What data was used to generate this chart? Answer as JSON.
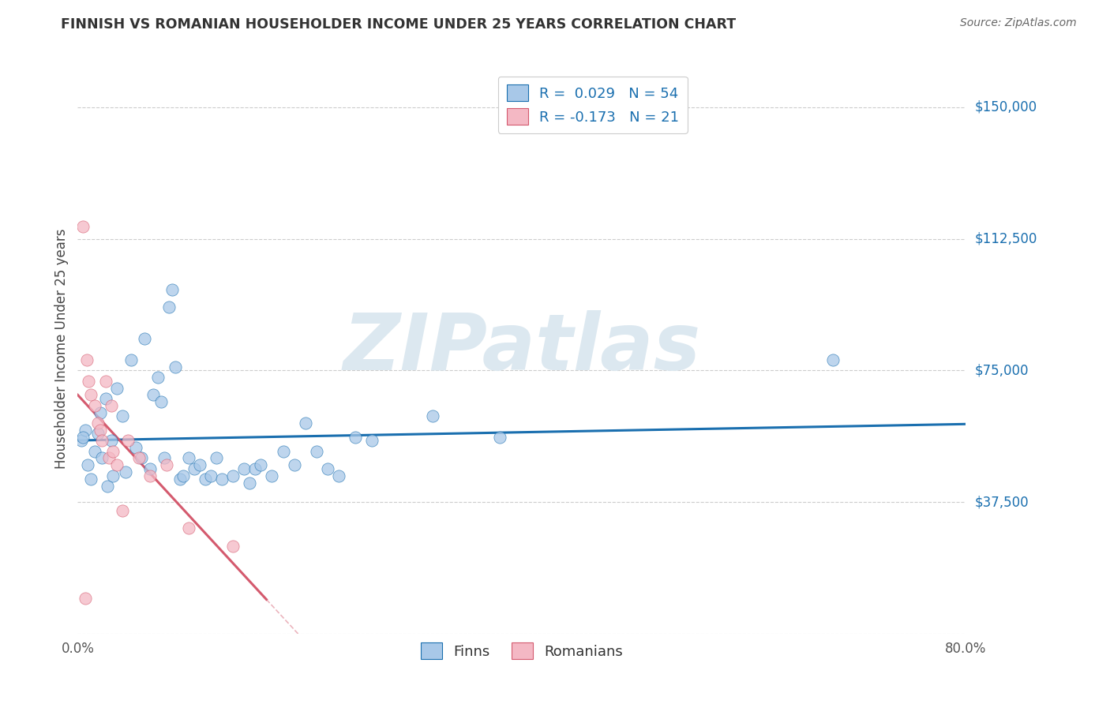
{
  "title": "FINNISH VS ROMANIAN HOUSEHOLDER INCOME UNDER 25 YEARS CORRELATION CHART",
  "source": "Source: ZipAtlas.com",
  "ylabel": "Householder Income Under 25 years",
  "xlim": [
    0.0,
    0.8
  ],
  "ylim": [
    0,
    162500
  ],
  "yticks": [
    0,
    37500,
    75000,
    112500,
    150000
  ],
  "ytick_labels": [
    "",
    "$37,500",
    "$75,000",
    "$112,500",
    "$150,000"
  ],
  "finns_R": 0.029,
  "finns_N": 54,
  "romanians_R": -0.173,
  "romanians_N": 21,
  "blue_fill": "#a8c8e8",
  "pink_fill": "#f4b8c4",
  "blue_line_color": "#1a6faf",
  "pink_line_color": "#d45a6e",
  "watermark": "ZIPatlas",
  "watermark_color": "#dce8f0",
  "legend_text_color": "#1a6faf",
  "title_color": "#333333",
  "grid_color": "#cccccc",
  "finns_x": [
    0.003,
    0.007,
    0.009,
    0.012,
    0.015,
    0.018,
    0.02,
    0.022,
    0.025,
    0.027,
    0.03,
    0.032,
    0.035,
    0.04,
    0.043,
    0.048,
    0.052,
    0.057,
    0.06,
    0.065,
    0.068,
    0.072,
    0.075,
    0.078,
    0.082,
    0.085,
    0.088,
    0.092,
    0.095,
    0.1,
    0.105,
    0.11,
    0.115,
    0.12,
    0.125,
    0.13,
    0.14,
    0.15,
    0.155,
    0.16,
    0.165,
    0.175,
    0.185,
    0.195,
    0.205,
    0.215,
    0.225,
    0.235,
    0.25,
    0.265,
    0.32,
    0.38,
    0.68,
    0.005
  ],
  "finns_y": [
    55000,
    58000,
    48000,
    44000,
    52000,
    57000,
    63000,
    50000,
    67000,
    42000,
    55000,
    45000,
    70000,
    62000,
    46000,
    78000,
    53000,
    50000,
    84000,
    47000,
    68000,
    73000,
    66000,
    50000,
    93000,
    98000,
    76000,
    44000,
    45000,
    50000,
    47000,
    48000,
    44000,
    45000,
    50000,
    44000,
    45000,
    47000,
    43000,
    47000,
    48000,
    45000,
    52000,
    48000,
    60000,
    52000,
    47000,
    45000,
    56000,
    55000,
    62000,
    56000,
    78000,
    56000
  ],
  "romanians_x": [
    0.005,
    0.008,
    0.01,
    0.012,
    0.015,
    0.018,
    0.02,
    0.022,
    0.025,
    0.028,
    0.03,
    0.032,
    0.035,
    0.04,
    0.045,
    0.055,
    0.065,
    0.08,
    0.1,
    0.14,
    0.007
  ],
  "romanians_y": [
    116000,
    78000,
    72000,
    68000,
    65000,
    60000,
    58000,
    55000,
    72000,
    50000,
    65000,
    52000,
    48000,
    35000,
    55000,
    50000,
    45000,
    48000,
    30000,
    25000,
    10000
  ]
}
